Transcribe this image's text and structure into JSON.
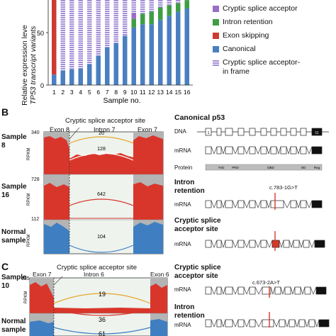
{
  "panel_a": {
    "ylabel_line1": "Relative expression leve",
    "ylabel_line2": "TP53 transcript variants",
    "xlabel": "Sample no.",
    "y_ticks": [
      "50",
      "0"
    ],
    "legend": [
      {
        "label": "Cryptic splice acceptor",
        "color": "#9a6ec7"
      },
      {
        "label": "Intron retention",
        "color": "#3f9e44"
      },
      {
        "label": "Exon skipping",
        "color": "#cc3b33"
      },
      {
        "label": "Canonical",
        "color": "#4a7fc1"
      },
      {
        "label": "Cryptic splice acceptor-",
        "label2": "in frame",
        "color": "#a48fd6"
      }
    ]
  },
  "chart_data": {
    "type": "bar",
    "stacked": true,
    "categories": [
      "1",
      "2",
      "3",
      "4",
      "5",
      "6",
      "7",
      "8",
      "9",
      "10",
      "11",
      "12",
      "13",
      "14",
      "15",
      "16"
    ],
    "series": [
      {
        "name": "Canonical",
        "values": [
          10,
          14,
          15,
          16,
          20,
          28,
          36,
          40,
          47,
          55,
          58,
          58,
          62,
          66,
          70,
          73
        ]
      },
      {
        "name": "Exon skipping",
        "values": [
          75,
          0,
          0,
          0,
          0,
          0,
          0,
          0,
          0,
          0,
          0,
          0,
          0,
          0,
          0,
          0
        ]
      },
      {
        "name": "Intron retention",
        "values": [
          5,
          0,
          0,
          0,
          0,
          0,
          0,
          0,
          0,
          8,
          10,
          12,
          12,
          10,
          8,
          8
        ]
      },
      {
        "name": "Cryptic splice acceptor",
        "values": [
          0,
          0,
          0,
          0,
          0,
          0,
          0,
          0,
          0,
          6,
          0,
          0,
          0,
          0,
          0,
          0
        ]
      },
      {
        "name": "Cryptic splice acceptor- in frame",
        "values": [
          0,
          86,
          85,
          84,
          80,
          72,
          64,
          60,
          53,
          17,
          32,
          30,
          26,
          24,
          22,
          19
        ]
      }
    ],
    "ylim": [
      0,
      100
    ],
    "ylabel": "Relative expression leve TP53 transcript variants",
    "xlabel": "Sample no."
  },
  "panel_b": {
    "letter": "B",
    "site_label": "Cryptic splice acceptor site",
    "exon_left": "Exon 8",
    "intron": "Intron 7",
    "exon_right": "Exon 7",
    "rpkm": "RPKM",
    "tracks": [
      {
        "name": "Sample",
        "name2": "8",
        "max": "340",
        "arc_top": "20",
        "arc_mid": "128"
      },
      {
        "name": "Sample",
        "name2": "16",
        "max": "728",
        "arc_mid": "642"
      },
      {
        "name": "Normal",
        "name2": "sample",
        "max": "112",
        "arc_bottom": "104"
      }
    ]
  },
  "panel_b_right": {
    "title": "Canonical p53",
    "dna": "DNA",
    "mrna": "mRNA",
    "protein": "Protein",
    "domains": [
      "TAD",
      "PRD",
      "DBD",
      "OD",
      "Reg"
    ],
    "exon_numbers": [
      "1",
      "11"
    ],
    "intron_retention_title": "Intron",
    "intron_retention_title2": "retention",
    "mutation_b1": "c.783-1G>T",
    "cryptic_title": "Cryptic splice",
    "cryptic_title2": "acceptor site"
  },
  "panel_c": {
    "letter": "C",
    "sample": "Sample",
    "sample_no": "10",
    "max": "135",
    "rpkm": "RPKM",
    "normal": "Normal",
    "normal2": "sample",
    "site_label": "Cryptic splice acceptor site",
    "exon_left": "Exon 7",
    "intron": "Intron 6",
    "exon_right": "Exon 6",
    "arc_top": "19",
    "arc_mid": "36",
    "arc_bottom": "61",
    "right_title": "Cryptic splice",
    "right_title2": "acceptor site",
    "mutation": "c.673-2A>T",
    "mrna": "mRNA",
    "intron_title": "Intron",
    "intron_title2": "retention"
  }
}
